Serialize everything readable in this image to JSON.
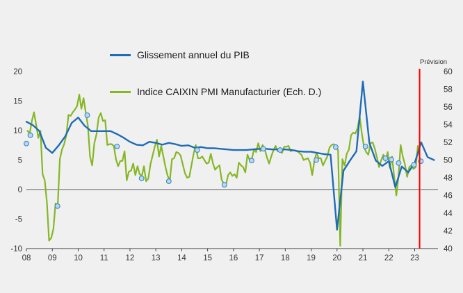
{
  "figure": {
    "background": "#f0f0f0",
    "prevision_label": "Prévision"
  },
  "legend": [
    {
      "label": "Glissement annuel du PIB",
      "color": "#1f6cb5"
    },
    {
      "label": "Indice CAIXIN PMI Manufacturier (Ech. D.)",
      "color": "#85b723"
    }
  ],
  "chart_data": {
    "type": "line",
    "title": "",
    "x_range": [
      2008,
      2023.9
    ],
    "x_tick_years": [
      2008,
      2009,
      2010,
      2011,
      2012,
      2013,
      2014,
      2015,
      2016,
      2017,
      2018,
      2019,
      2020,
      2021,
      2022,
      2023
    ],
    "x_tick_labels": [
      "08",
      "09",
      "10",
      "11",
      "12",
      "13",
      "14",
      "15",
      "16",
      "17",
      "18",
      "19",
      "20",
      "21",
      "22",
      "23"
    ],
    "axes": {
      "left": {
        "min": -10,
        "max": 20,
        "ticks": [
          20,
          15,
          10,
          5,
          0,
          -5,
          -10
        ]
      },
      "right": {
        "min": 40,
        "max": 60,
        "ticks": [
          60,
          58,
          56,
          54,
          52,
          50,
          48,
          46,
          44,
          42,
          40
        ]
      }
    },
    "zero_line_value": 0,
    "prevision_line": {
      "x": 2023.19,
      "color": "#fe0000"
    },
    "series": [
      {
        "name": "Glissement annuel du PIB",
        "axis": "left",
        "color": "#1f6cb5",
        "width": 2.4,
        "x_start": 2008.0,
        "x_step": 0.25,
        "values": [
          11.5,
          10.9,
          9.9,
          7.1,
          6.2,
          7.5,
          9.0,
          11.3,
          12.2,
          10.8,
          9.9,
          9.9,
          9.9,
          9.9,
          9.4,
          8.8,
          8.1,
          7.6,
          7.5,
          8.1,
          7.9,
          7.6,
          7.9,
          7.7,
          7.4,
          7.5,
          7.1,
          7.2,
          7.0,
          7.0,
          6.9,
          6.8,
          6.7,
          6.7,
          6.7,
          6.8,
          6.9,
          6.9,
          6.8,
          6.8,
          6.8,
          6.7,
          6.5,
          6.4,
          6.4,
          6.2,
          6.0,
          5.9,
          -6.8,
          3.2,
          4.9,
          6.5,
          18.3,
          7.9,
          4.9,
          4.0,
          4.8,
          0.4,
          3.9,
          2.9,
          4.5,
          8.0,
          5.5,
          5.0
        ]
      },
      {
        "name": "Indice CAIXIN PMI Manufacturier (Ech. D.)",
        "axis": "right",
        "color": "#85b723",
        "width": 2.2,
        "x_start": 2008.0417,
        "x_step": 0.083333,
        "values": [
          53.3,
          53.0,
          54.4,
          55.4,
          54.0,
          52.5,
          53.3,
          48.4,
          47.7,
          45.2,
          40.9,
          41.2,
          42.2,
          45.1,
          44.8,
          50.1,
          51.2,
          51.8,
          52.8,
          55.1,
          55.0,
          55.4,
          55.7,
          56.1,
          57.4,
          55.8,
          57.0,
          55.4,
          53.9,
          50.4,
          49.4,
          51.9,
          52.9,
          54.8,
          55.3,
          54.4,
          54.5,
          51.7,
          51.8,
          51.8,
          51.6,
          50.1,
          49.3,
          49.9,
          49.9,
          51.0,
          47.7,
          48.7,
          48.8,
          49.6,
          48.3,
          49.3,
          48.4,
          48.2,
          49.3,
          47.6,
          47.9,
          49.5,
          50.5,
          51.5,
          52.3,
          50.4,
          51.6,
          50.4,
          49.2,
          48.2,
          47.7,
          50.1,
          50.2,
          50.9,
          50.8,
          50.5,
          49.5,
          48.5,
          48.0,
          48.1,
          49.4,
          50.7,
          51.7,
          50.2,
          50.2,
          50.4,
          50.0,
          49.6,
          49.7,
          50.7,
          49.6,
          48.9,
          49.2,
          49.4,
          47.8,
          47.3,
          47.2,
          48.3,
          48.6,
          48.2,
          48.4,
          48.0,
          49.7,
          49.4,
          49.2,
          48.6,
          50.6,
          50.0,
          50.1,
          51.2,
          50.9,
          51.9,
          51.0,
          51.7,
          51.2,
          50.3,
          49.6,
          50.4,
          51.1,
          51.6,
          51.0,
          51.0,
          50.8,
          51.5,
          51.5,
          51.6,
          51.0,
          51.1,
          51.1,
          51.0,
          50.8,
          50.6,
          50.0,
          50.1,
          50.2,
          49.7,
          48.3,
          49.9,
          50.8,
          50.2,
          50.2,
          49.4,
          49.9,
          50.4,
          51.4,
          51.7,
          51.8,
          51.5,
          51.1,
          40.3,
          50.1,
          49.4,
          50.7,
          51.2,
          52.8,
          53.1,
          53.0,
          53.6,
          54.9,
          53.0,
          51.5,
          50.9,
          50.6,
          51.9,
          52.0,
          51.3,
          50.3,
          49.2,
          50.0,
          50.6,
          49.9,
          50.9,
          49.1,
          50.4,
          48.1,
          46.0,
          48.1,
          51.7,
          50.4,
          49.5,
          48.1,
          49.2,
          49.4,
          49.0,
          49.2,
          51.6,
          50.0
        ]
      }
    ],
    "markers": {
      "fill": "#b9d7ef",
      "stroke": "#3a87c8",
      "points": [
        [
          2008.0,
          7.8
        ],
        [
          2008.15,
          9.2
        ],
        [
          2009.2,
          -2.8
        ],
        [
          2010.35,
          12.6
        ],
        [
          2011.5,
          7.3
        ],
        [
          2012.45,
          1.9
        ],
        [
          2013.5,
          1.4
        ],
        [
          2014.6,
          6.7
        ],
        [
          2015.65,
          0.8
        ],
        [
          2016.7,
          4.9
        ],
        [
          2017.15,
          6.9
        ],
        [
          2017.8,
          6.7
        ],
        [
          2019.2,
          5.0
        ],
        [
          2019.95,
          7.2
        ],
        [
          2021.1,
          7.3
        ],
        [
          2021.87,
          5.3
        ],
        [
          2022.1,
          5.1
        ],
        [
          2022.38,
          4.5
        ],
        [
          2022.97,
          4.2
        ],
        [
          2023.24,
          4.8
        ]
      ]
    },
    "legend_position": "top-left-inside",
    "grid": "off"
  }
}
